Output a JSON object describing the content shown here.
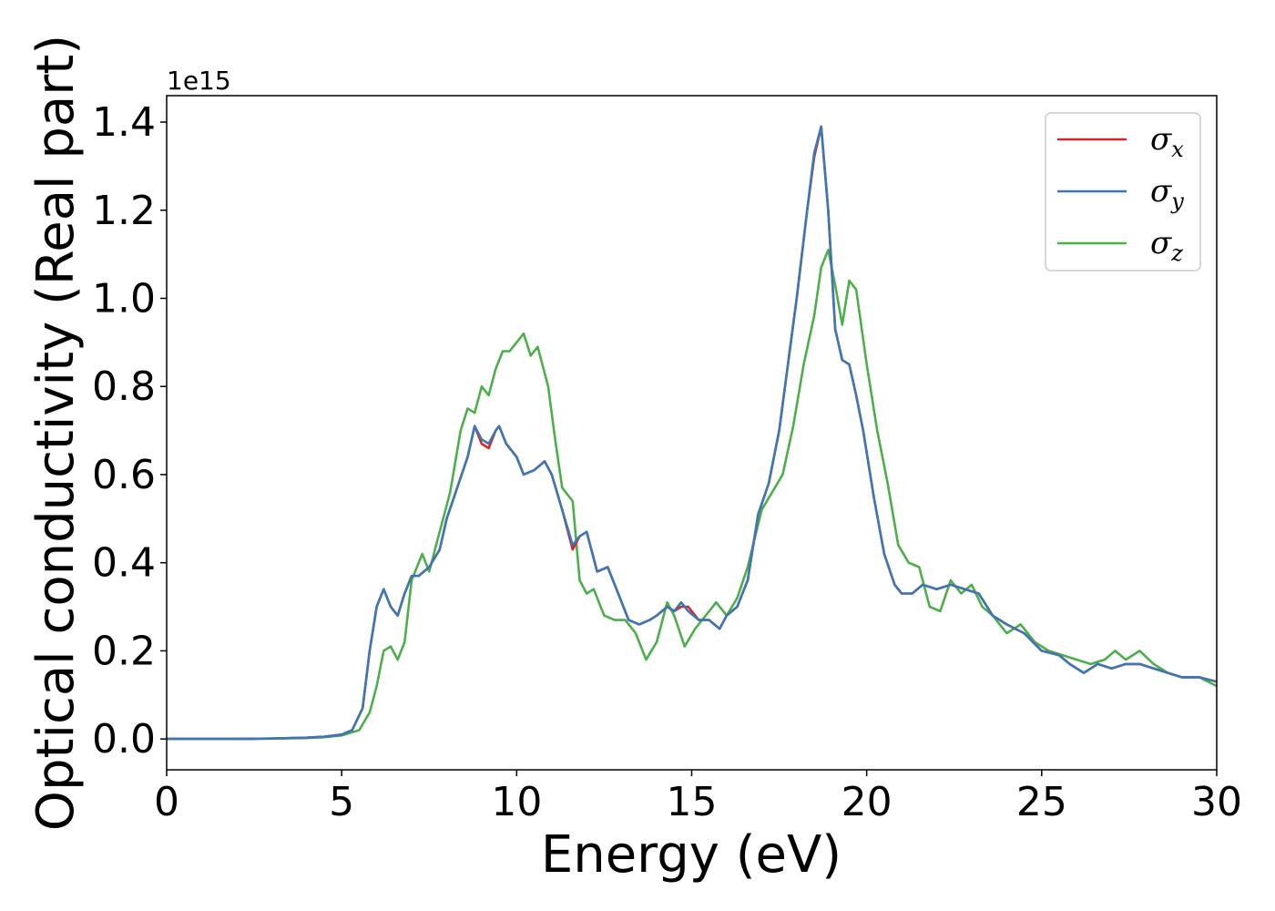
{
  "chart_data": {
    "type": "line",
    "xlabel": "Energy (eV)",
    "ylabel": "Optical conductivity (Real part)",
    "y_offset_label": "1e15",
    "xlim": [
      0,
      30
    ],
    "ylim": [
      -0.07,
      1.46
    ],
    "xticks": [
      0,
      5,
      10,
      15,
      20,
      25,
      30
    ],
    "xtick_labels": [
      "0",
      "5",
      "10",
      "15",
      "20",
      "25",
      "30"
    ],
    "yticks": [
      0.0,
      0.2,
      0.4,
      0.6,
      0.8,
      1.0,
      1.2,
      1.4
    ],
    "ytick_labels": [
      "0.0",
      "0.2",
      "0.4",
      "0.6",
      "0.8",
      "1.0",
      "1.2",
      "1.4"
    ],
    "grid": false,
    "legend_position": "top-right",
    "series": [
      {
        "name": "σ",
        "subscript": "x",
        "color": "#d62728",
        "x": [
          0,
          2,
          3,
          4,
          4.5,
          5,
          5.3,
          5.6,
          5.8,
          6.0,
          6.2,
          6.4,
          6.6,
          6.8,
          7.0,
          7.2,
          7.5,
          7.8,
          8.0,
          8.3,
          8.6,
          8.8,
          9.0,
          9.2,
          9.4,
          9.5,
          9.7,
          10.0,
          10.2,
          10.5,
          10.8,
          11.0,
          11.3,
          11.6,
          11.8,
          12.0,
          12.3,
          12.6,
          12.9,
          13.2,
          13.5,
          13.8,
          14.0,
          14.3,
          14.5,
          14.7,
          14.9,
          15.2,
          15.5,
          15.8,
          16.0,
          16.3,
          16.6,
          16.9,
          17.2,
          17.5,
          17.8,
          18.0,
          18.3,
          18.5,
          18.7,
          18.9,
          19.1,
          19.3,
          19.5,
          19.7,
          19.9,
          20.2,
          20.5,
          20.8,
          21.0,
          21.3,
          21.6,
          22.0,
          22.4,
          22.8,
          23.2,
          23.6,
          24.0,
          24.5,
          25.0,
          25.5,
          25.8,
          26.2,
          26.6,
          27.0,
          27.4,
          27.8,
          28.2,
          28.6,
          29.0,
          29.5,
          30.0
        ],
        "values": [
          0.0,
          0.0,
          0.001,
          0.003,
          0.005,
          0.01,
          0.02,
          0.07,
          0.2,
          0.3,
          0.34,
          0.3,
          0.28,
          0.33,
          0.37,
          0.37,
          0.39,
          0.43,
          0.5,
          0.57,
          0.64,
          0.71,
          0.67,
          0.66,
          0.7,
          0.71,
          0.67,
          0.64,
          0.6,
          0.61,
          0.63,
          0.6,
          0.52,
          0.43,
          0.46,
          0.47,
          0.38,
          0.39,
          0.33,
          0.27,
          0.26,
          0.27,
          0.28,
          0.3,
          0.29,
          0.3,
          0.3,
          0.27,
          0.27,
          0.25,
          0.28,
          0.3,
          0.36,
          0.51,
          0.58,
          0.7,
          0.88,
          1.0,
          1.2,
          1.32,
          1.39,
          1.2,
          0.93,
          0.86,
          0.85,
          0.78,
          0.7,
          0.55,
          0.42,
          0.35,
          0.33,
          0.33,
          0.35,
          0.34,
          0.35,
          0.34,
          0.33,
          0.28,
          0.26,
          0.24,
          0.2,
          0.19,
          0.17,
          0.15,
          0.17,
          0.16,
          0.17,
          0.17,
          0.16,
          0.15,
          0.14,
          0.14,
          0.13
        ]
      },
      {
        "name": "σ",
        "subscript": "y",
        "color": "#3b78b5",
        "x": [
          0,
          2,
          3,
          4,
          4.5,
          5,
          5.3,
          5.6,
          5.8,
          6.0,
          6.2,
          6.4,
          6.6,
          6.8,
          7.0,
          7.2,
          7.5,
          7.8,
          8.0,
          8.3,
          8.6,
          8.8,
          9.0,
          9.2,
          9.4,
          9.5,
          9.7,
          10.0,
          10.2,
          10.5,
          10.8,
          11.0,
          11.3,
          11.6,
          11.8,
          12.0,
          12.3,
          12.6,
          12.9,
          13.2,
          13.5,
          13.8,
          14.0,
          14.3,
          14.5,
          14.7,
          14.9,
          15.2,
          15.5,
          15.8,
          16.0,
          16.3,
          16.6,
          16.9,
          17.2,
          17.5,
          17.8,
          18.0,
          18.3,
          18.5,
          18.7,
          18.9,
          19.1,
          19.3,
          19.5,
          19.7,
          19.9,
          20.2,
          20.5,
          20.8,
          21.0,
          21.3,
          21.6,
          22.0,
          22.4,
          22.8,
          23.2,
          23.6,
          24.0,
          24.5,
          25.0,
          25.5,
          25.8,
          26.2,
          26.6,
          27.0,
          27.4,
          27.8,
          28.2,
          28.6,
          29.0,
          29.5,
          30.0
        ],
        "values": [
          0.0,
          0.0,
          0.001,
          0.003,
          0.005,
          0.01,
          0.02,
          0.07,
          0.2,
          0.3,
          0.34,
          0.3,
          0.28,
          0.33,
          0.37,
          0.37,
          0.39,
          0.43,
          0.5,
          0.57,
          0.64,
          0.71,
          0.68,
          0.67,
          0.7,
          0.71,
          0.67,
          0.64,
          0.6,
          0.61,
          0.63,
          0.6,
          0.52,
          0.44,
          0.46,
          0.47,
          0.38,
          0.39,
          0.33,
          0.27,
          0.26,
          0.27,
          0.28,
          0.3,
          0.29,
          0.31,
          0.29,
          0.27,
          0.27,
          0.25,
          0.28,
          0.3,
          0.36,
          0.51,
          0.58,
          0.7,
          0.88,
          1.0,
          1.2,
          1.33,
          1.39,
          1.2,
          0.93,
          0.86,
          0.85,
          0.78,
          0.7,
          0.55,
          0.42,
          0.35,
          0.33,
          0.33,
          0.35,
          0.34,
          0.35,
          0.34,
          0.33,
          0.28,
          0.26,
          0.24,
          0.2,
          0.19,
          0.17,
          0.15,
          0.17,
          0.16,
          0.17,
          0.17,
          0.16,
          0.15,
          0.14,
          0.14,
          0.13
        ]
      },
      {
        "name": "σ",
        "subscript": "z",
        "color": "#4daf4a",
        "x": [
          0,
          2,
          3,
          4,
          4.5,
          5,
          5.5,
          5.8,
          6.0,
          6.2,
          6.4,
          6.6,
          6.8,
          7.0,
          7.3,
          7.5,
          7.7,
          7.9,
          8.1,
          8.4,
          8.6,
          8.8,
          9.0,
          9.2,
          9.4,
          9.6,
          9.8,
          10.0,
          10.2,
          10.4,
          10.6,
          10.9,
          11.1,
          11.3,
          11.6,
          11.8,
          12.0,
          12.2,
          12.5,
          12.8,
          13.1,
          13.4,
          13.7,
          14.0,
          14.3,
          14.5,
          14.8,
          15.1,
          15.4,
          15.7,
          16.0,
          16.3,
          16.6,
          17.0,
          17.3,
          17.6,
          17.9,
          18.2,
          18.5,
          18.7,
          18.9,
          19.1,
          19.3,
          19.5,
          19.7,
          20.0,
          20.3,
          20.6,
          20.9,
          21.2,
          21.5,
          21.8,
          22.1,
          22.4,
          22.7,
          23.0,
          23.3,
          23.6,
          24.0,
          24.4,
          24.8,
          25.2,
          25.6,
          26.0,
          26.4,
          26.8,
          27.1,
          27.4,
          27.8,
          28.2,
          28.6,
          29.0,
          29.5,
          30.0
        ],
        "values": [
          0.0,
          0.0,
          0.001,
          0.002,
          0.004,
          0.008,
          0.02,
          0.06,
          0.12,
          0.2,
          0.21,
          0.18,
          0.22,
          0.36,
          0.42,
          0.38,
          0.44,
          0.5,
          0.56,
          0.7,
          0.75,
          0.74,
          0.8,
          0.78,
          0.84,
          0.88,
          0.88,
          0.9,
          0.92,
          0.87,
          0.89,
          0.8,
          0.68,
          0.57,
          0.54,
          0.36,
          0.33,
          0.34,
          0.28,
          0.27,
          0.27,
          0.24,
          0.18,
          0.22,
          0.31,
          0.28,
          0.21,
          0.25,
          0.28,
          0.31,
          0.28,
          0.32,
          0.39,
          0.52,
          0.56,
          0.6,
          0.71,
          0.85,
          0.96,
          1.07,
          1.11,
          1.03,
          0.94,
          1.04,
          1.02,
          0.85,
          0.7,
          0.58,
          0.44,
          0.4,
          0.39,
          0.3,
          0.29,
          0.36,
          0.33,
          0.35,
          0.3,
          0.28,
          0.24,
          0.26,
          0.22,
          0.2,
          0.19,
          0.18,
          0.17,
          0.18,
          0.2,
          0.18,
          0.2,
          0.17,
          0.15,
          0.14,
          0.14,
          0.12
        ]
      }
    ]
  }
}
